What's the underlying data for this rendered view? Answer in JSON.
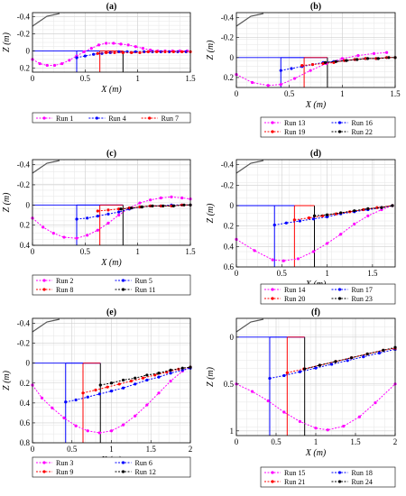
{
  "figure": {
    "panels": [
      {
        "label": "(a)",
        "xlabel": "X (m)",
        "ylabel": "Z (m)"
      },
      {
        "label": "(b)",
        "xlabel": "X (m)",
        "ylabel": "Z (m)"
      },
      {
        "label": "(c)",
        "xlabel": "X (m)",
        "ylabel": "Z (m)"
      },
      {
        "label": "(d)",
        "xlabel": "X (m)",
        "ylabel": "Z (m)"
      },
      {
        "label": "(e)",
        "xlabel": "X (m)",
        "ylabel": "Z (m)"
      },
      {
        "label": "(f)",
        "xlabel": "X (m)",
        "ylabel": "Z (m)"
      }
    ]
  },
  "chart_data": [
    {
      "type": "line",
      "title": "(a)",
      "xlabel": "X (m)",
      "ylabel": "Z (m)",
      "xlim": [
        0,
        1.5
      ],
      "ylim": [
        0.25,
        -0.45
      ],
      "y_reversed": true,
      "grid": true,
      "xticks": [
        "0",
        "0.5",
        "1",
        "1.5"
      ],
      "yticks": [
        "-0.4",
        "-0.2",
        "0",
        "0.2"
      ],
      "legend_position": "bottom",
      "guides": [
        {
          "color": "#0000ff",
          "x": 0.42
        },
        {
          "color": "#ff0000",
          "x": 0.64
        },
        {
          "color": "#000000",
          "x": 0.86
        }
      ],
      "series": [
        {
          "name": "Run 1",
          "color": "#ff00ff",
          "x": [
            0,
            0.07,
            0.14,
            0.21,
            0.28,
            0.35,
            0.42,
            0.49,
            0.56,
            0.63,
            0.7,
            0.77,
            0.84,
            0.91,
            0.98,
            1.05,
            1.12,
            1.19,
            1.26,
            1.33,
            1.4,
            1.47
          ],
          "y": [
            0.1,
            0.15,
            0.17,
            0.17,
            0.15,
            0.11,
            0.06,
            0.01,
            -0.03,
            -0.07,
            -0.09,
            -0.09,
            -0.08,
            -0.07,
            -0.05,
            -0.03,
            -0.01,
            0,
            0,
            0,
            0,
            0
          ]
        },
        {
          "name": "Run 4",
          "color": "#0000ff",
          "x": [
            0.42,
            0.5,
            0.58,
            0.66,
            0.74,
            0.82,
            0.9,
            0.98,
            1.06,
            1.14,
            1.22,
            1.3,
            1.38,
            1.46
          ],
          "y": [
            0.08,
            0.06,
            0.04,
            0.03,
            0.02,
            0.01,
            0.01,
            0.01,
            0.01,
            0.01,
            0.01,
            0.01,
            0.01,
            0.01
          ]
        },
        {
          "name": "Run 7",
          "color": "#ff0000",
          "x": [
            0.62,
            0.7,
            0.78,
            0.86,
            0.94,
            1.02,
            1.1,
            1.18,
            1.26,
            1.34,
            1.42,
            1.5
          ],
          "y": [
            0.03,
            0.02,
            0.02,
            0.02,
            0.02,
            0.02,
            0.01,
            0.01,
            0.01,
            0.01,
            0.01,
            0.01
          ]
        }
      ]
    },
    {
      "type": "line",
      "title": "(b)",
      "xlabel": "X (m)",
      "ylabel": "Z (m)",
      "xlim": [
        0,
        1.5
      ],
      "ylim": [
        0.3,
        -0.45
      ],
      "y_reversed": true,
      "grid": true,
      "xticks": [
        "0",
        "0.5",
        "1",
        "1.5"
      ],
      "yticks": [
        "-0.4",
        "-0.2",
        "0",
        "0.2"
      ],
      "legend_position": "bottom",
      "guides": [
        {
          "color": "#0000ff",
          "x": 0.42
        },
        {
          "color": "#ff0000",
          "x": 0.64
        },
        {
          "color": "#000000",
          "x": 0.86
        }
      ],
      "series": [
        {
          "name": "Run 13",
          "color": "#ff00ff",
          "x": [
            0,
            0.15,
            0.3,
            0.42,
            0.55,
            0.7,
            0.85,
            1.0,
            1.15,
            1.3,
            1.42
          ],
          "y": [
            0.17,
            0.25,
            0.28,
            0.27,
            0.21,
            0.13,
            0.06,
            0.01,
            -0.02,
            -0.04,
            -0.05
          ]
        },
        {
          "name": "Run 16",
          "color": "#0000ff",
          "x": [
            0.42,
            0.52,
            0.62,
            0.72,
            0.82,
            0.92,
            1.02,
            1.12,
            1.22,
            1.32,
            1.42
          ],
          "y": [
            0.13,
            0.11,
            0.09,
            0.07,
            0.05,
            0.04,
            0.03,
            0.02,
            0.01,
            0.01,
            0.0
          ]
        },
        {
          "name": "Run 19",
          "color": "#ff0000",
          "x": [
            0.62,
            0.72,
            0.82,
            0.92,
            1.02,
            1.12,
            1.22,
            1.32,
            1.42,
            1.5
          ],
          "y": [
            0.08,
            0.07,
            0.06,
            0.05,
            0.03,
            0.02,
            0.01,
            0.01,
            0.0,
            0.0
          ]
        },
        {
          "name": "Run 22",
          "color": "#000000",
          "x": [
            0.84,
            0.94,
            1.04,
            1.14,
            1.24,
            1.34,
            1.44,
            1.5
          ],
          "y": [
            0.05,
            0.04,
            0.03,
            0.02,
            0.01,
            0.01,
            0.0,
            0.0
          ]
        }
      ]
    },
    {
      "type": "line",
      "title": "(c)",
      "xlabel": "X (m)",
      "ylabel": "Z (m)",
      "xlim": [
        0,
        1.5
      ],
      "ylim": [
        0.4,
        -0.45
      ],
      "y_reversed": true,
      "grid": true,
      "xticks": [
        "0",
        "0.5",
        "1",
        "1.5"
      ],
      "yticks": [
        "-0.4",
        "-0.2",
        "0",
        "0.2",
        "0.4"
      ],
      "legend_position": "bottom",
      "guides": [
        {
          "color": "#0000ff",
          "x": 0.42
        },
        {
          "color": "#ff0000",
          "x": 0.64
        },
        {
          "color": "#000000",
          "x": 0.86
        }
      ],
      "series": [
        {
          "name": "Run 2",
          "color": "#ff00ff",
          "x": [
            0,
            0.1,
            0.2,
            0.3,
            0.42,
            0.52,
            0.62,
            0.72,
            0.82,
            0.92,
            1.02,
            1.12,
            1.22,
            1.32,
            1.42,
            1.5
          ],
          "y": [
            0.13,
            0.22,
            0.28,
            0.32,
            0.33,
            0.3,
            0.25,
            0.18,
            0.1,
            0.03,
            -0.02,
            -0.05,
            -0.07,
            -0.08,
            -0.07,
            -0.06
          ]
        },
        {
          "name": "Run 5",
          "color": "#0000ff",
          "x": [
            0.42,
            0.52,
            0.62,
            0.72,
            0.82,
            0.92,
            1.02,
            1.12,
            1.22,
            1.32,
            1.42,
            1.5
          ],
          "y": [
            0.14,
            0.13,
            0.11,
            0.09,
            0.07,
            0.04,
            0.02,
            0.01,
            0.01,
            0.0,
            0.0,
            0.0
          ]
        },
        {
          "name": "Run 8",
          "color": "#ff0000",
          "x": [
            0.62,
            0.72,
            0.82,
            0.92,
            1.02,
            1.12,
            1.22,
            1.32,
            1.42,
            1.5
          ],
          "y": [
            0.06,
            0.05,
            0.04,
            0.03,
            0.02,
            0.01,
            0.01,
            0.01,
            0.0,
            0.0
          ]
        },
        {
          "name": "Run 11",
          "color": "#000000",
          "x": [
            0.84,
            0.94,
            1.04,
            1.14,
            1.24,
            1.34,
            1.44,
            1.5
          ],
          "y": [
            0.04,
            0.03,
            0.02,
            0.01,
            0.01,
            0.01,
            0.0,
            0.0
          ]
        }
      ]
    },
    {
      "type": "line",
      "title": "(d)",
      "xlabel": "X (m)",
      "ylabel": "Z (m)",
      "xlim": [
        0,
        1.75
      ],
      "ylim": [
        0.6,
        -0.45
      ],
      "y_reversed": true,
      "grid": true,
      "xticks": [
        "0",
        "0.5",
        "1",
        "1.5"
      ],
      "yticks": [
        "-0.4",
        "-0.2",
        "0",
        "0.2",
        "0.4",
        "0.6"
      ],
      "legend_position": "bottom",
      "guides": [
        {
          "color": "#0000ff",
          "x": 0.42
        },
        {
          "color": "#ff0000",
          "x": 0.64
        },
        {
          "color": "#000000",
          "x": 0.86
        }
      ],
      "series": [
        {
          "name": "Run 14",
          "color": "#ff00ff",
          "x": [
            0,
            0.2,
            0.4,
            0.52,
            0.68,
            0.85,
            1.0,
            1.15,
            1.3,
            1.45,
            1.6,
            1.72
          ],
          "y": [
            0.33,
            0.44,
            0.53,
            0.54,
            0.52,
            0.45,
            0.37,
            0.28,
            0.18,
            0.1,
            0.04,
            0.0
          ]
        },
        {
          "name": "Run 17",
          "color": "#0000ff",
          "x": [
            0.42,
            0.55,
            0.7,
            0.85,
            1.0,
            1.15,
            1.3,
            1.45,
            1.6,
            1.72
          ],
          "y": [
            0.19,
            0.17,
            0.15,
            0.13,
            0.11,
            0.08,
            0.06,
            0.04,
            0.02,
            0.0
          ]
        },
        {
          "name": "Run 20",
          "color": "#ff0000",
          "x": [
            0.64,
            0.8,
            0.95,
            1.1,
            1.25,
            1.4,
            1.55,
            1.72
          ],
          "y": [
            0.14,
            0.12,
            0.1,
            0.08,
            0.06,
            0.04,
            0.02,
            0.0
          ]
        },
        {
          "name": "Run 23",
          "color": "#000000",
          "x": [
            0.86,
            1.0,
            1.15,
            1.3,
            1.45,
            1.6,
            1.72
          ],
          "y": [
            0.1,
            0.09,
            0.07,
            0.05,
            0.03,
            0.02,
            0.0
          ]
        }
      ]
    },
    {
      "type": "line",
      "title": "(e)",
      "xlabel": "X (m)",
      "ylabel": "Z (m)",
      "xlim": [
        0,
        2
      ],
      "ylim": [
        0.8,
        -0.45
      ],
      "y_reversed": true,
      "grid": true,
      "xticks": [
        "0",
        "0.5",
        "1",
        "1.5",
        "2"
      ],
      "yticks": [
        "-0.4",
        "-0.2",
        "0",
        "0.2",
        "0.4",
        "0.6",
        "0.8"
      ],
      "legend_position": "bottom",
      "guides": [
        {
          "color": "#0000ff",
          "x": 0.42
        },
        {
          "color": "#ff0000",
          "x": 0.64
        },
        {
          "color": "#000000",
          "x": 0.86
        }
      ],
      "series": [
        {
          "name": "Run 3",
          "color": "#ff00ff",
          "x": [
            0,
            0.12,
            0.25,
            0.4,
            0.55,
            0.7,
            0.85,
            1.0,
            1.15,
            1.3,
            1.45,
            1.6,
            1.75,
            1.9,
            2.0
          ],
          "y": [
            0.22,
            0.35,
            0.45,
            0.55,
            0.63,
            0.68,
            0.7,
            0.68,
            0.62,
            0.53,
            0.42,
            0.3,
            0.18,
            0.08,
            0.04
          ]
        },
        {
          "name": "Run 6",
          "color": "#0000ff",
          "x": [
            0.42,
            0.55,
            0.7,
            0.85,
            1.0,
            1.15,
            1.3,
            1.45,
            1.6,
            1.75,
            1.9,
            2.0
          ],
          "y": [
            0.39,
            0.37,
            0.34,
            0.31,
            0.28,
            0.25,
            0.21,
            0.17,
            0.14,
            0.1,
            0.07,
            0.05
          ]
        },
        {
          "name": "Run 9",
          "color": "#ff0000",
          "x": [
            0.64,
            0.8,
            0.95,
            1.1,
            1.25,
            1.4,
            1.55,
            1.7,
            1.85,
            2.0
          ],
          "y": [
            0.3,
            0.27,
            0.24,
            0.21,
            0.18,
            0.15,
            0.12,
            0.09,
            0.06,
            0.04
          ]
        },
        {
          "name": "Run 12",
          "color": "#000000",
          "x": [
            0.86,
            1.0,
            1.15,
            1.3,
            1.45,
            1.6,
            1.75,
            1.9,
            2.0
          ],
          "y": [
            0.22,
            0.2,
            0.17,
            0.15,
            0.12,
            0.1,
            0.07,
            0.05,
            0.04
          ]
        }
      ]
    },
    {
      "type": "line",
      "title": "(f)",
      "xlabel": "X (m)",
      "ylabel": "Z (m)",
      "xlim": [
        0,
        2
      ],
      "ylim": [
        1.05,
        -0.2
      ],
      "y_reversed": true,
      "grid": true,
      "xticks": [
        "0",
        "0.5",
        "1",
        "1.5",
        "2"
      ],
      "yticks": [
        "0",
        "0.5",
        "1"
      ],
      "legend_position": "bottom",
      "guides": [
        {
          "color": "#0000ff",
          "x": 0.42
        },
        {
          "color": "#ff0000",
          "x": 0.64
        },
        {
          "color": "#000000",
          "x": 0.86
        }
      ],
      "series": [
        {
          "name": "Run 15",
          "color": "#ff00ff",
          "x": [
            0,
            0.2,
            0.4,
            0.6,
            0.8,
            1.0,
            1.15,
            1.35,
            1.55,
            1.75,
            2.0
          ],
          "y": [
            0.5,
            0.58,
            0.68,
            0.8,
            0.9,
            0.97,
            0.99,
            0.95,
            0.85,
            0.7,
            0.5
          ]
        },
        {
          "name": "Run 18",
          "color": "#0000ff",
          "x": [
            0.42,
            0.6,
            0.8,
            1.0,
            1.2,
            1.4,
            1.6,
            1.8,
            2.0
          ],
          "y": [
            0.44,
            0.41,
            0.37,
            0.33,
            0.29,
            0.25,
            0.21,
            0.17,
            0.13
          ]
        },
        {
          "name": "Run 21",
          "color": "#ff0000",
          "x": [
            0.64,
            0.85,
            1.05,
            1.25,
            1.45,
            1.65,
            1.85,
            2.0
          ],
          "y": [
            0.38,
            0.34,
            0.3,
            0.26,
            0.22,
            0.18,
            0.14,
            0.12
          ]
        },
        {
          "name": "Run 24",
          "color": "#000000",
          "x": [
            0.86,
            1.05,
            1.25,
            1.45,
            1.65,
            1.85,
            2.0
          ],
          "y": [
            0.34,
            0.3,
            0.26,
            0.22,
            0.18,
            0.14,
            0.11
          ]
        }
      ]
    }
  ]
}
